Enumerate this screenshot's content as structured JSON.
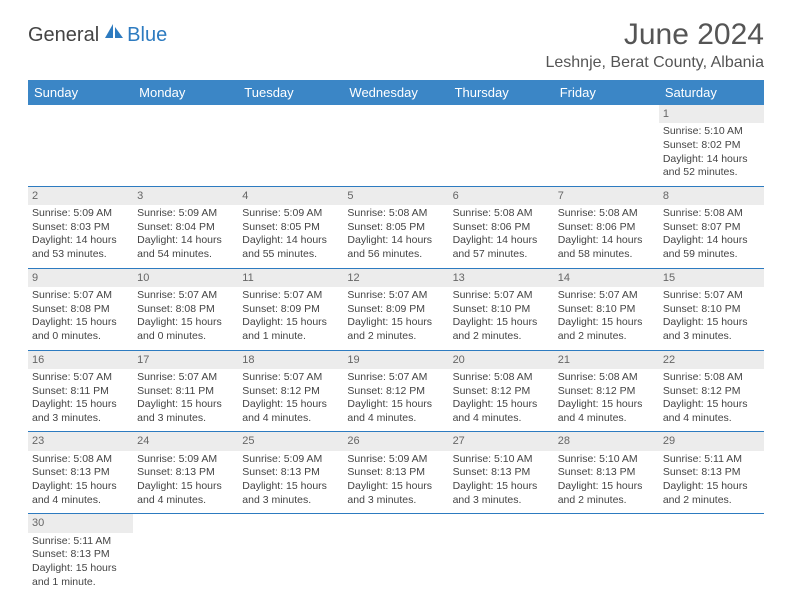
{
  "logo": {
    "general": "General",
    "blue": "Blue"
  },
  "title": "June 2024",
  "location": "Leshnje, Berat County, Albania",
  "colors": {
    "header_bg": "#3b86c6",
    "accent": "#2d7bc0",
    "daynum_bg": "#ececec"
  },
  "day_headers": [
    "Sunday",
    "Monday",
    "Tuesday",
    "Wednesday",
    "Thursday",
    "Friday",
    "Saturday"
  ],
  "weeks": [
    [
      null,
      null,
      null,
      null,
      null,
      null,
      {
        "n": "1",
        "sr": "Sunrise: 5:10 AM",
        "ss": "Sunset: 8:02 PM",
        "dl": "Daylight: 14 hours and 52 minutes."
      }
    ],
    [
      {
        "n": "2",
        "sr": "Sunrise: 5:09 AM",
        "ss": "Sunset: 8:03 PM",
        "dl": "Daylight: 14 hours and 53 minutes."
      },
      {
        "n": "3",
        "sr": "Sunrise: 5:09 AM",
        "ss": "Sunset: 8:04 PM",
        "dl": "Daylight: 14 hours and 54 minutes."
      },
      {
        "n": "4",
        "sr": "Sunrise: 5:09 AM",
        "ss": "Sunset: 8:05 PM",
        "dl": "Daylight: 14 hours and 55 minutes."
      },
      {
        "n": "5",
        "sr": "Sunrise: 5:08 AM",
        "ss": "Sunset: 8:05 PM",
        "dl": "Daylight: 14 hours and 56 minutes."
      },
      {
        "n": "6",
        "sr": "Sunrise: 5:08 AM",
        "ss": "Sunset: 8:06 PM",
        "dl": "Daylight: 14 hours and 57 minutes."
      },
      {
        "n": "7",
        "sr": "Sunrise: 5:08 AM",
        "ss": "Sunset: 8:06 PM",
        "dl": "Daylight: 14 hours and 58 minutes."
      },
      {
        "n": "8",
        "sr": "Sunrise: 5:08 AM",
        "ss": "Sunset: 8:07 PM",
        "dl": "Daylight: 14 hours and 59 minutes."
      }
    ],
    [
      {
        "n": "9",
        "sr": "Sunrise: 5:07 AM",
        "ss": "Sunset: 8:08 PM",
        "dl": "Daylight: 15 hours and 0 minutes."
      },
      {
        "n": "10",
        "sr": "Sunrise: 5:07 AM",
        "ss": "Sunset: 8:08 PM",
        "dl": "Daylight: 15 hours and 0 minutes."
      },
      {
        "n": "11",
        "sr": "Sunrise: 5:07 AM",
        "ss": "Sunset: 8:09 PM",
        "dl": "Daylight: 15 hours and 1 minute."
      },
      {
        "n": "12",
        "sr": "Sunrise: 5:07 AM",
        "ss": "Sunset: 8:09 PM",
        "dl": "Daylight: 15 hours and 2 minutes."
      },
      {
        "n": "13",
        "sr": "Sunrise: 5:07 AM",
        "ss": "Sunset: 8:10 PM",
        "dl": "Daylight: 15 hours and 2 minutes."
      },
      {
        "n": "14",
        "sr": "Sunrise: 5:07 AM",
        "ss": "Sunset: 8:10 PM",
        "dl": "Daylight: 15 hours and 2 minutes."
      },
      {
        "n": "15",
        "sr": "Sunrise: 5:07 AM",
        "ss": "Sunset: 8:10 PM",
        "dl": "Daylight: 15 hours and 3 minutes."
      }
    ],
    [
      {
        "n": "16",
        "sr": "Sunrise: 5:07 AM",
        "ss": "Sunset: 8:11 PM",
        "dl": "Daylight: 15 hours and 3 minutes."
      },
      {
        "n": "17",
        "sr": "Sunrise: 5:07 AM",
        "ss": "Sunset: 8:11 PM",
        "dl": "Daylight: 15 hours and 3 minutes."
      },
      {
        "n": "18",
        "sr": "Sunrise: 5:07 AM",
        "ss": "Sunset: 8:12 PM",
        "dl": "Daylight: 15 hours and 4 minutes."
      },
      {
        "n": "19",
        "sr": "Sunrise: 5:07 AM",
        "ss": "Sunset: 8:12 PM",
        "dl": "Daylight: 15 hours and 4 minutes."
      },
      {
        "n": "20",
        "sr": "Sunrise: 5:08 AM",
        "ss": "Sunset: 8:12 PM",
        "dl": "Daylight: 15 hours and 4 minutes."
      },
      {
        "n": "21",
        "sr": "Sunrise: 5:08 AM",
        "ss": "Sunset: 8:12 PM",
        "dl": "Daylight: 15 hours and 4 minutes."
      },
      {
        "n": "22",
        "sr": "Sunrise: 5:08 AM",
        "ss": "Sunset: 8:12 PM",
        "dl": "Daylight: 15 hours and 4 minutes."
      }
    ],
    [
      {
        "n": "23",
        "sr": "Sunrise: 5:08 AM",
        "ss": "Sunset: 8:13 PM",
        "dl": "Daylight: 15 hours and 4 minutes."
      },
      {
        "n": "24",
        "sr": "Sunrise: 5:09 AM",
        "ss": "Sunset: 8:13 PM",
        "dl": "Daylight: 15 hours and 4 minutes."
      },
      {
        "n": "25",
        "sr": "Sunrise: 5:09 AM",
        "ss": "Sunset: 8:13 PM",
        "dl": "Daylight: 15 hours and 3 minutes."
      },
      {
        "n": "26",
        "sr": "Sunrise: 5:09 AM",
        "ss": "Sunset: 8:13 PM",
        "dl": "Daylight: 15 hours and 3 minutes."
      },
      {
        "n": "27",
        "sr": "Sunrise: 5:10 AM",
        "ss": "Sunset: 8:13 PM",
        "dl": "Daylight: 15 hours and 3 minutes."
      },
      {
        "n": "28",
        "sr": "Sunrise: 5:10 AM",
        "ss": "Sunset: 8:13 PM",
        "dl": "Daylight: 15 hours and 2 minutes."
      },
      {
        "n": "29",
        "sr": "Sunrise: 5:11 AM",
        "ss": "Sunset: 8:13 PM",
        "dl": "Daylight: 15 hours and 2 minutes."
      }
    ],
    [
      {
        "n": "30",
        "sr": "Sunrise: 5:11 AM",
        "ss": "Sunset: 8:13 PM",
        "dl": "Daylight: 15 hours and 1 minute."
      },
      null,
      null,
      null,
      null,
      null,
      null
    ]
  ]
}
